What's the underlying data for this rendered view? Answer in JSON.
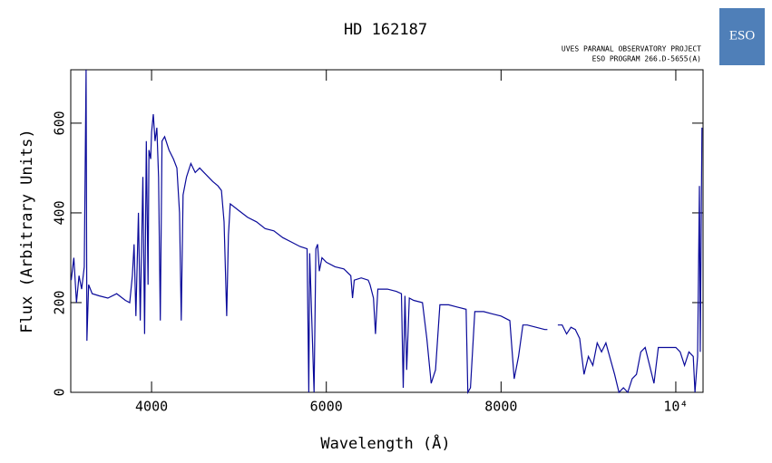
{
  "chart_data": {
    "type": "line",
    "title": "HD 162187",
    "annotations": [
      "UVES PARANAL OBSERVATORY PROJECT",
      "ESO PROGRAM 266.D-5655(A)"
    ],
    "logo": "ESO",
    "x_label": "Wavelength (Å)",
    "y_label": "Flux (Arbitrary Units)",
    "color": "#0a0a9a",
    "xlim": [
      3075,
      10312
    ],
    "ylim": [
      0,
      719
    ],
    "xticks": [
      4000,
      6000,
      8000,
      {
        "value": 10000,
        "label": "10⁴"
      }
    ],
    "yticks": [
      0,
      200,
      400,
      600
    ],
    "x": [
      3080,
      3110,
      3140,
      3170,
      3200,
      3230,
      3250,
      3260,
      3280,
      3320,
      3400,
      3500,
      3600,
      3700,
      3750,
      3780,
      3800,
      3820,
      3850,
      3870,
      3900,
      3920,
      3940,
      3960,
      3970,
      3990,
      4000,
      4020,
      4040,
      4060,
      4080,
      4100,
      4120,
      4150,
      4200,
      4250,
      4290,
      4320,
      4340,
      4360,
      4400,
      4450,
      4500,
      4550,
      4600,
      4700,
      4760,
      4800,
      4830,
      4860,
      4880,
      4900,
      5000,
      5100,
      5200,
      5300,
      5400,
      5500,
      5600,
      5700,
      5780,
      5800,
      5810,
      5860,
      5880,
      5900,
      5920,
      5950,
      6000,
      6100,
      6200,
      6280,
      6300,
      6320,
      6400,
      6480,
      6500,
      6540,
      6563,
      6590,
      6700,
      6800,
      6860,
      6880,
      6900,
      6920,
      6950,
      7000,
      7100,
      7150,
      7200,
      7250,
      7300,
      7400,
      7500,
      7600,
      7620,
      7650,
      7700,
      7800,
      7900,
      8000,
      8100,
      8150,
      8200,
      8250,
      8300,
      8400,
      8500,
      8530,
      8560,
      8650,
      8700,
      8750,
      8800,
      8850,
      8900,
      8950,
      9000,
      9050,
      9100,
      9150,
      9200,
      9300,
      9350,
      9400,
      9450,
      9500,
      9550,
      9600,
      9650,
      9700,
      9750,
      9800,
      9900,
      10000,
      10050,
      10100,
      10150,
      10200,
      10220,
      10250,
      10270,
      10280,
      10300
    ],
    "values": [
      250,
      300,
      200,
      260,
      230,
      280,
      719,
      115,
      240,
      220,
      215,
      210,
      220,
      205,
      200,
      260,
      330,
      170,
      400,
      160,
      480,
      130,
      560,
      240,
      540,
      520,
      580,
      620,
      560,
      590,
      480,
      160,
      560,
      570,
      540,
      520,
      500,
      400,
      160,
      440,
      480,
      510,
      490,
      500,
      490,
      470,
      460,
      450,
      380,
      170,
      350,
      420,
      405,
      390,
      380,
      365,
      360,
      345,
      335,
      325,
      320,
      0,
      310,
      0,
      320,
      330,
      270,
      300,
      290,
      280,
      275,
      260,
      210,
      250,
      255,
      250,
      240,
      210,
      130,
      230,
      230,
      225,
      220,
      10,
      215,
      50,
      210,
      205,
      200,
      120,
      20,
      50,
      195,
      195,
      190,
      185,
      0,
      10,
      180,
      180,
      175,
      170,
      160,
      30,
      80,
      150,
      150,
      145,
      140,
      140,
      null,
      150,
      150,
      130,
      145,
      140,
      120,
      40,
      80,
      60,
      110,
      90,
      110,
      40,
      0,
      10,
      0,
      30,
      40,
      90,
      100,
      60,
      20,
      100,
      100,
      100,
      90,
      60,
      90,
      80,
      0,
      80,
      460,
      90,
      590
    ]
  }
}
